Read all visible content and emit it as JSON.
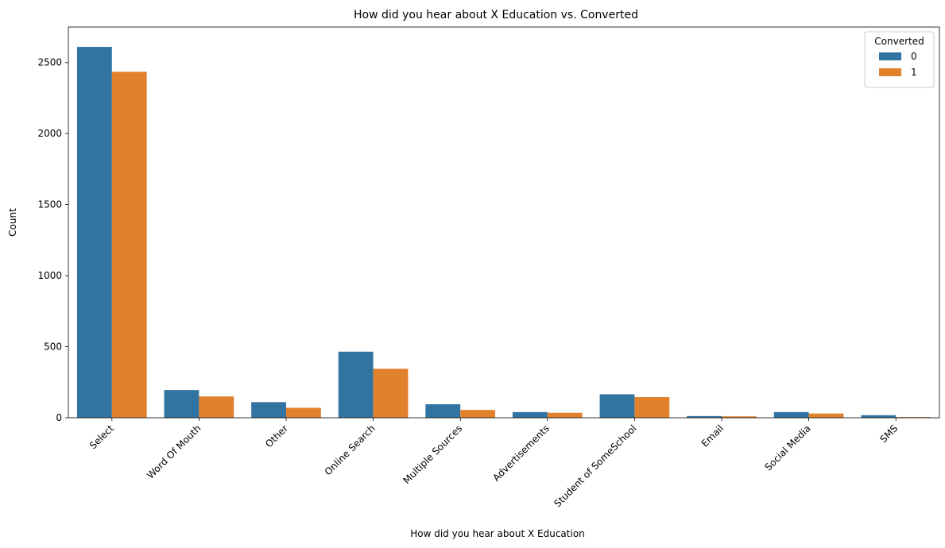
{
  "chart_data": {
    "type": "bar",
    "title": "How did you hear about X Education vs. Converted",
    "xlabel": "How did you hear about X Education",
    "ylabel": "Count",
    "categories": [
      "Select",
      "Word Of Mouth",
      "Other",
      "Online Search",
      "Multiple Sources",
      "Advertisements",
      "Student of SomeSchool",
      "Email",
      "Social Media",
      "SMS"
    ],
    "series": [
      {
        "name": "0",
        "color": "#3274a1",
        "values": [
          2610,
          195,
          110,
          465,
          95,
          40,
          165,
          12,
          40,
          18
        ]
      },
      {
        "name": "1",
        "color": "#e1812c",
        "values": [
          2435,
          150,
          70,
          345,
          55,
          35,
          145,
          10,
          30,
          5
        ]
      }
    ],
    "ylim": [
      0,
      2750
    ],
    "yticks": [
      0,
      500,
      1000,
      1500,
      2000,
      2500
    ],
    "legend": {
      "title": "Converted",
      "placement": "top-right"
    },
    "grid": false
  }
}
